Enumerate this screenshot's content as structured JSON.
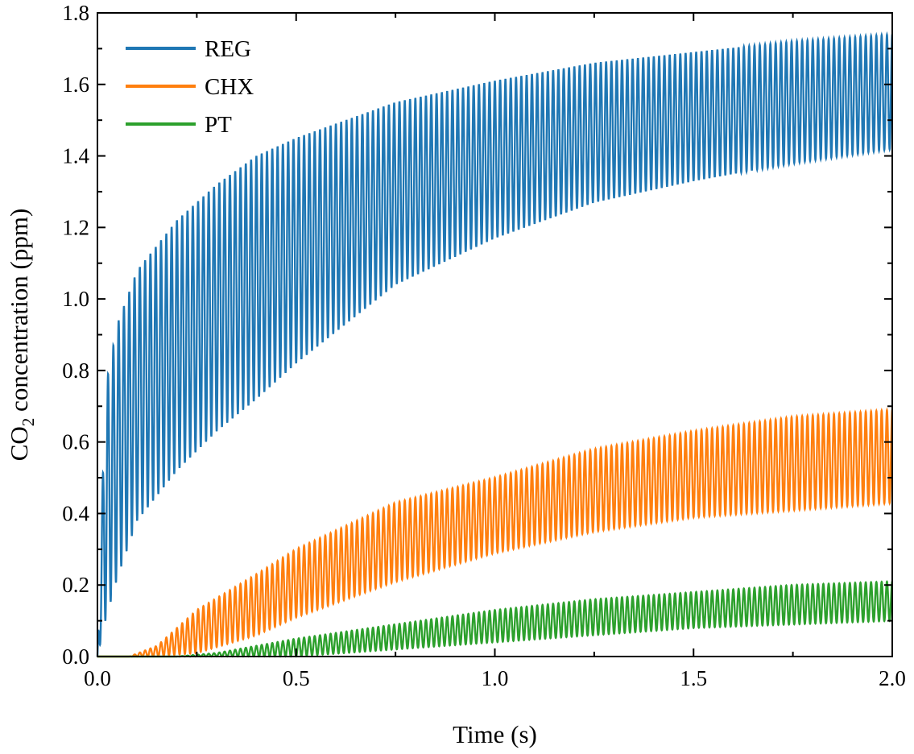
{
  "chart_data": {
    "type": "line",
    "title": "",
    "xlabel": "Time (s)",
    "ylabel": {
      "prefix": "CO",
      "subscript": "2",
      "suffix": " concentration (ppm)"
    },
    "xlim": [
      0.0,
      2.0
    ],
    "ylim": [
      0.0,
      1.8
    ],
    "x_ticks": [
      "0.0",
      "0.5",
      "1.0",
      "1.5",
      "2.0"
    ],
    "y_ticks": [
      "0.0",
      "0.2",
      "0.4",
      "0.6",
      "0.8",
      "1.0",
      "1.2",
      "1.4",
      "1.6",
      "1.8"
    ],
    "grid": false,
    "legend_position": "top-left",
    "oscillation_cycles": 150,
    "series": [
      {
        "name": "REG",
        "color": "#1f77b4",
        "upper_envelope": [
          [
            0.0,
            0.0
          ],
          [
            0.02,
            0.75
          ],
          [
            0.05,
            0.93
          ],
          [
            0.1,
            1.08
          ],
          [
            0.2,
            1.22
          ],
          [
            0.3,
            1.32
          ],
          [
            0.4,
            1.4
          ],
          [
            0.5,
            1.45
          ],
          [
            0.75,
            1.55
          ],
          [
            1.0,
            1.61
          ],
          [
            1.25,
            1.66
          ],
          [
            1.5,
            1.69
          ],
          [
            1.75,
            1.72
          ],
          [
            2.0,
            1.74
          ]
        ],
        "lower_envelope": [
          [
            0.0,
            0.0
          ],
          [
            0.02,
            0.1
          ],
          [
            0.05,
            0.22
          ],
          [
            0.1,
            0.38
          ],
          [
            0.2,
            0.52
          ],
          [
            0.3,
            0.63
          ],
          [
            0.4,
            0.72
          ],
          [
            0.5,
            0.82
          ],
          [
            0.75,
            1.04
          ],
          [
            1.0,
            1.17
          ],
          [
            1.25,
            1.27
          ],
          [
            1.5,
            1.33
          ],
          [
            1.75,
            1.38
          ],
          [
            2.0,
            1.42
          ]
        ]
      },
      {
        "name": "CHX",
        "color": "#ff7f0e",
        "upper_envelope": [
          [
            0.0,
            0.0
          ],
          [
            0.08,
            0.0
          ],
          [
            0.15,
            0.03
          ],
          [
            0.25,
            0.13
          ],
          [
            0.4,
            0.23
          ],
          [
            0.5,
            0.3
          ],
          [
            0.75,
            0.43
          ],
          [
            1.0,
            0.5
          ],
          [
            1.25,
            0.58
          ],
          [
            1.5,
            0.63
          ],
          [
            1.75,
            0.67
          ],
          [
            2.0,
            0.69
          ]
        ],
        "lower_envelope": [
          [
            0.0,
            0.0
          ],
          [
            0.08,
            0.0
          ],
          [
            0.15,
            0.0
          ],
          [
            0.25,
            0.01
          ],
          [
            0.4,
            0.06
          ],
          [
            0.5,
            0.11
          ],
          [
            0.75,
            0.21
          ],
          [
            1.0,
            0.29
          ],
          [
            1.25,
            0.35
          ],
          [
            1.5,
            0.39
          ],
          [
            1.75,
            0.41
          ],
          [
            2.0,
            0.43
          ]
        ]
      },
      {
        "name": "PT",
        "color": "#2ca02c",
        "upper_envelope": [
          [
            0.0,
            0.0
          ],
          [
            0.2,
            0.0
          ],
          [
            0.3,
            0.01
          ],
          [
            0.4,
            0.03
          ],
          [
            0.5,
            0.05
          ],
          [
            0.75,
            0.09
          ],
          [
            1.0,
            0.13
          ],
          [
            1.25,
            0.16
          ],
          [
            1.5,
            0.18
          ],
          [
            1.75,
            0.2
          ],
          [
            2.0,
            0.21
          ]
        ],
        "lower_envelope": [
          [
            0.0,
            0.0
          ],
          [
            0.2,
            0.0
          ],
          [
            0.3,
            0.0
          ],
          [
            0.4,
            0.0
          ],
          [
            0.5,
            0.0
          ],
          [
            0.75,
            0.02
          ],
          [
            1.0,
            0.04
          ],
          [
            1.25,
            0.06
          ],
          [
            1.5,
            0.08
          ],
          [
            1.75,
            0.09
          ],
          [
            2.0,
            0.1
          ]
        ]
      }
    ]
  }
}
